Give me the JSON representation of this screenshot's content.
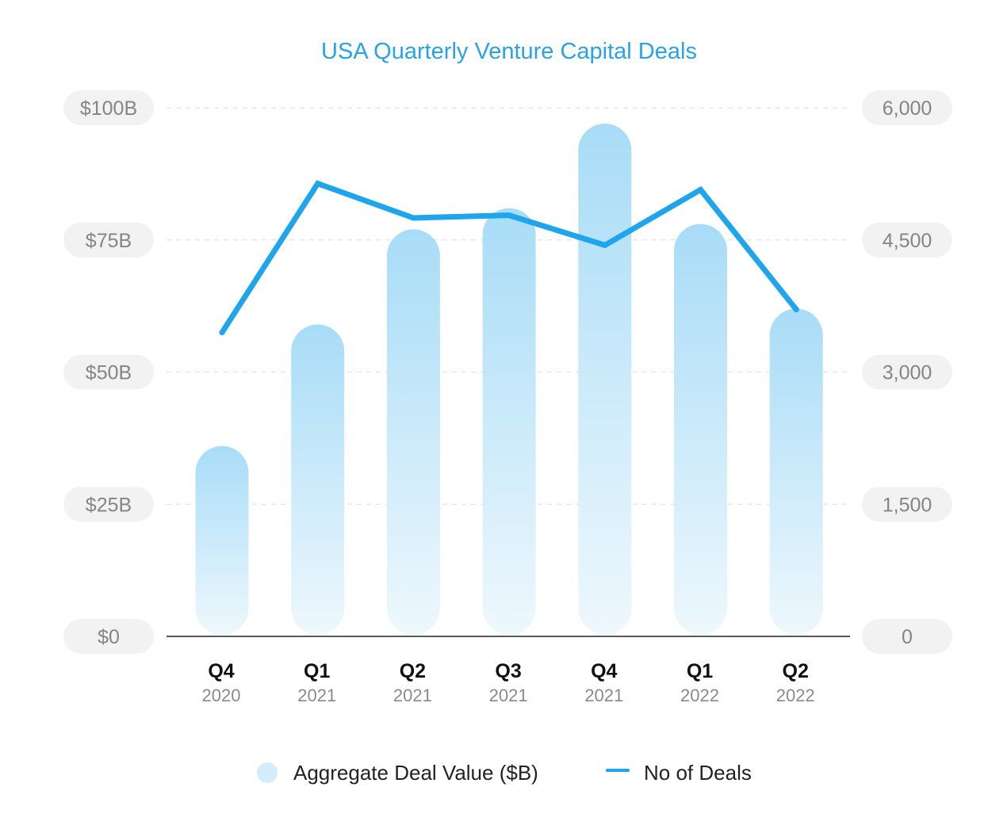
{
  "chart_data": {
    "type": "bar+line",
    "title": "USA Quarterly Venture Capital Deals",
    "categories": [
      {
        "quarter": "Q4",
        "year": "2020"
      },
      {
        "quarter": "Q1",
        "year": "2021"
      },
      {
        "quarter": "Q2",
        "year": "2021"
      },
      {
        "quarter": "Q3",
        "year": "2021"
      },
      {
        "quarter": "Q4",
        "year": "2021"
      },
      {
        "quarter": "Q1",
        "year": "2022"
      },
      {
        "quarter": "Q2",
        "year": "2022"
      }
    ],
    "series": [
      {
        "name": "Aggregate Deal Value ($B)",
        "type": "bar",
        "axis": "left",
        "values": [
          36,
          59,
          77,
          81,
          97,
          78,
          62
        ]
      },
      {
        "name": "No of Deals",
        "type": "line",
        "axis": "right",
        "values": [
          3450,
          5140,
          4750,
          4780,
          4440,
          5070,
          3710
        ]
      }
    ],
    "left_axis": {
      "ticks": [
        "$0",
        "$25B",
        "$50B",
        "$75B",
        "$100B"
      ],
      "range": [
        0,
        100
      ]
    },
    "right_axis": {
      "ticks": [
        "0",
        "1,500",
        "3,000",
        "4,500",
        "6,000"
      ],
      "range": [
        0,
        6000
      ]
    },
    "grid": true,
    "legend_position": "bottom",
    "colors": {
      "title": "#29A3E6",
      "bar_top": "#A8DCF7",
      "bar_bottom": "#EEF8FD",
      "line": "#1FA5EC",
      "tick_pill": "#F2F2F2",
      "tick_text": "#858585",
      "grid": "#E2E2E2",
      "baseline": "#222222",
      "quarter_text": "#111111",
      "year_text": "#8A8A8A",
      "legend_text": "#222222",
      "legend_bar_swatch": "#D5EDFB"
    }
  }
}
